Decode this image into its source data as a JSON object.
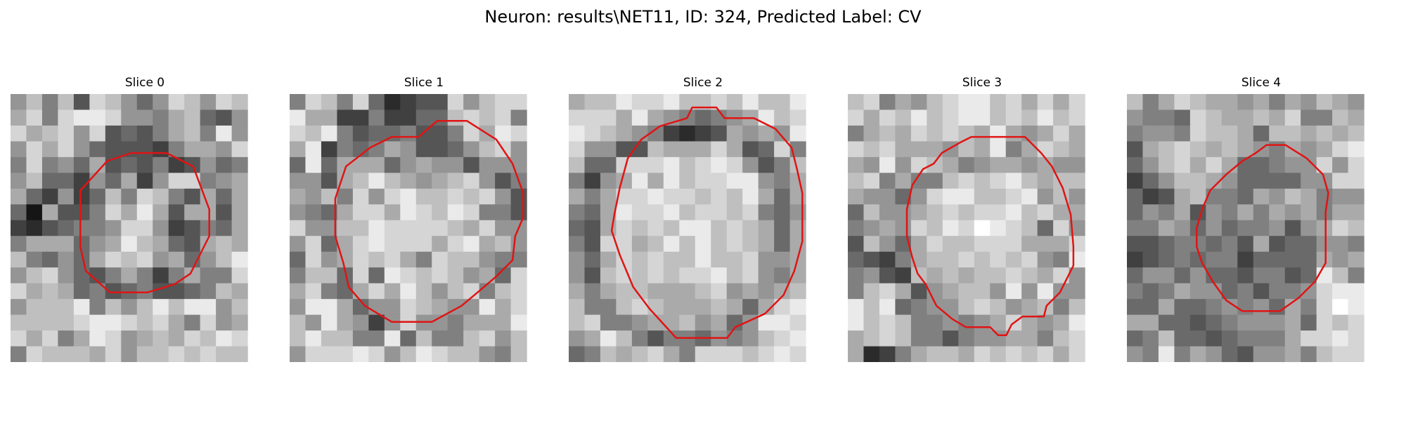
{
  "figure": {
    "title": "Neuron: results\\NET11, ID: 324, Predicted Label: CV"
  },
  "panels": [
    {
      "title": "Slice 0",
      "pixels": [
        "79694A9757A97A9",
        "8A6ABBA77689547",
        "A89A7A4546896B7",
        "7A8A7544436887A",
        "6A6758454634756",
        "7955375837AA678",
        "85373596A964858",
        "518446A8B848848",
        "3245667AA734658",
        "6888578B9854898",
        "965758A9A78579B",
        "79A75468636866A",
        "A89856456445698",
        "7999B6979B9BB79",
        "9999ABBA9A86A78",
        "A8A68BA7898A9BA",
        "6A9998A799A9A99"
      ],
      "outline": [
        [
          0.26,
          0.36
        ],
        [
          0.36,
          0.25
        ],
        [
          0.45,
          0.22
        ],
        [
          0.58,
          0.22
        ],
        [
          0.68,
          0.27
        ],
        [
          0.71,
          0.35
        ],
        [
          0.74,
          0.43
        ],
        [
          0.74,
          0.53
        ],
        [
          0.7,
          0.61
        ],
        [
          0.67,
          0.67
        ],
        [
          0.61,
          0.71
        ],
        [
          0.51,
          0.74
        ],
        [
          0.37,
          0.74
        ],
        [
          0.28,
          0.66
        ],
        [
          0.26,
          0.57
        ],
        [
          0.26,
          0.45
        ]
      ],
      "outline_color": "#e01414"
    },
    {
      "title": "Slice 1",
      "pixels": [
        "6A96A52344A79AA",
        "B8833633559A9A6",
        "A9B64556446A8BA",
        "8B36568744579A7",
        "5B5888578774777",
        "77489B98789A746",
        "8796A7AB99A9A74",
        "7658AA8BA9BA664",
        "A7799BAAAA98A77",
        "7A58ABAAA8AB897",
        "5A78A9A86A99766",
        "6995A5BA9A9785A",
        "8A658A8B979A69A",
        "7BB8577A9877B8A",
        "97B8737A776888B",
        "9B9966B59669A79",
        "7AAABA79BA99769"
      ],
      "outline": [
        [
          0.17,
          0.39
        ],
        [
          0.21,
          0.27
        ],
        [
          0.3,
          0.2
        ],
        [
          0.38,
          0.16
        ],
        [
          0.48,
          0.16
        ],
        [
          0.55,
          0.1
        ],
        [
          0.66,
          0.1
        ],
        [
          0.77,
          0.17
        ],
        [
          0.83,
          0.26
        ],
        [
          0.87,
          0.37
        ],
        [
          0.87,
          0.46
        ],
        [
          0.84,
          0.53
        ],
        [
          0.83,
          0.62
        ],
        [
          0.77,
          0.68
        ],
        [
          0.7,
          0.74
        ],
        [
          0.64,
          0.79
        ],
        [
          0.53,
          0.85
        ],
        [
          0.38,
          0.85
        ],
        [
          0.28,
          0.79
        ],
        [
          0.22,
          0.72
        ],
        [
          0.2,
          0.63
        ],
        [
          0.17,
          0.53
        ]
      ],
      "outline_color": "#e01414"
    },
    {
      "title": "Slice 2",
      "pixels": [
        "899BAAB99A9B99B",
        "AAA8B8765678B9A",
        "BA987632348787B",
        "A77449888A845A6",
        "955AAAB9ABA7469",
        "6378B8B9AABB768",
        "868AABAA9A9B858",
        "658BAAB9AA9A657",
        "548A9A9BB9A9858",
        "64AA89B9B9A9858",
        "758A9A99B99A778",
        "749A9A9AAB9A768",
        "868998889A78789",
        "9669A98889858AB",
        "9A6678897857BBA",
        "78B9646657679AB",
        "56989A86AAA9ABA"
      ],
      "outline": [
        [
          0.17,
          0.45
        ],
        [
          0.19,
          0.35
        ],
        [
          0.22,
          0.24
        ],
        [
          0.27,
          0.17
        ],
        [
          0.34,
          0.12
        ],
        [
          0.44,
          0.09
        ],
        [
          0.46,
          0.05
        ],
        [
          0.55,
          0.05
        ],
        [
          0.58,
          0.09
        ],
        [
          0.69,
          0.09
        ],
        [
          0.77,
          0.13
        ],
        [
          0.83,
          0.2
        ],
        [
          0.85,
          0.28
        ],
        [
          0.87,
          0.37
        ],
        [
          0.87,
          0.55
        ],
        [
          0.84,
          0.66
        ],
        [
          0.8,
          0.75
        ],
        [
          0.73,
          0.82
        ],
        [
          0.62,
          0.87
        ],
        [
          0.59,
          0.91
        ],
        [
          0.4,
          0.91
        ],
        [
          0.3,
          0.8
        ],
        [
          0.24,
          0.72
        ],
        [
          0.19,
          0.6
        ],
        [
          0.16,
          0.51
        ]
      ],
      "outline_color": "#e01414"
    },
    {
      "title": "Slice 3",
      "pixels": [
        "9A6879ABB9A8A8A",
        "A8A9B9ABB9A9B9A",
        "6898A9A98B878A8",
        "A9A888798B68A98",
        "87B7A9867887877",
        "9A68669A9AB9899",
        "87757ABB99AB797",
        "597789A9AAB9A88",
        "6787A9BACBA95A7",
        "49758A99AAA888A",
        "5436899A9A9A76B",
        "6743989899A98A7",
        "69A8478997B7B77",
        "B9B56779A978969",
        "B9A9667678A878B",
        "89A96646778869A",
        "82368998A9A9A8A"
      ],
      "outline": [
        [
          0.22,
          0.43
        ],
        [
          0.24,
          0.34
        ],
        [
          0.28,
          0.28
        ],
        [
          0.32,
          0.26
        ],
        [
          0.35,
          0.22
        ],
        [
          0.42,
          0.18
        ],
        [
          0.46,
          0.16
        ],
        [
          0.66,
          0.16
        ],
        [
          0.72,
          0.22
        ],
        [
          0.76,
          0.27
        ],
        [
          0.8,
          0.35
        ],
        [
          0.83,
          0.45
        ],
        [
          0.84,
          0.57
        ],
        [
          0.84,
          0.64
        ],
        [
          0.81,
          0.7
        ],
        [
          0.79,
          0.74
        ],
        [
          0.74,
          0.79
        ],
        [
          0.73,
          0.83
        ],
        [
          0.65,
          0.83
        ],
        [
          0.61,
          0.86
        ],
        [
          0.59,
          0.9
        ],
        [
          0.56,
          0.9
        ],
        [
          0.53,
          0.87
        ],
        [
          0.44,
          0.87
        ],
        [
          0.39,
          0.84
        ],
        [
          0.33,
          0.79
        ],
        [
          0.29,
          0.71
        ],
        [
          0.26,
          0.67
        ],
        [
          0.24,
          0.61
        ],
        [
          0.22,
          0.53
        ]
      ],
      "outline_color": "#e01414"
    },
    {
      "title": "Slice 4",
      "pixels": [
        "968A98878687987",
        "7665A98898A6698",
        "6776A9985998989",
        "489A989876878AB",
        "579A8A855677A7A",
        "3579987555577AA",
        "534896658798677",
        "576847686878688",
        "6687575667478A9",
        "445665648455776",
        "345656635555878",
        "577575546645B96",
        "656877564667ABB",
        "558556767586ACB",
        "885545677785A9A",
        "56955456668AABA",
        "76B6875477869AA"
      ],
      "outline": [
        [
          0.26,
          0.5
        ],
        [
          0.28,
          0.43
        ],
        [
          0.31,
          0.36
        ],
        [
          0.37,
          0.3
        ],
        [
          0.43,
          0.25
        ],
        [
          0.48,
          0.22
        ],
        [
          0.52,
          0.19
        ],
        [
          0.59,
          0.19
        ],
        [
          0.67,
          0.24
        ],
        [
          0.73,
          0.3
        ],
        [
          0.75,
          0.37
        ],
        [
          0.74,
          0.44
        ],
        [
          0.74,
          0.52
        ],
        [
          0.74,
          0.63
        ],
        [
          0.7,
          0.7
        ],
        [
          0.64,
          0.76
        ],
        [
          0.57,
          0.81
        ],
        [
          0.43,
          0.81
        ],
        [
          0.37,
          0.77
        ],
        [
          0.32,
          0.7
        ],
        [
          0.28,
          0.63
        ],
        [
          0.26,
          0.57
        ]
      ],
      "outline_color": "#e01414"
    }
  ]
}
